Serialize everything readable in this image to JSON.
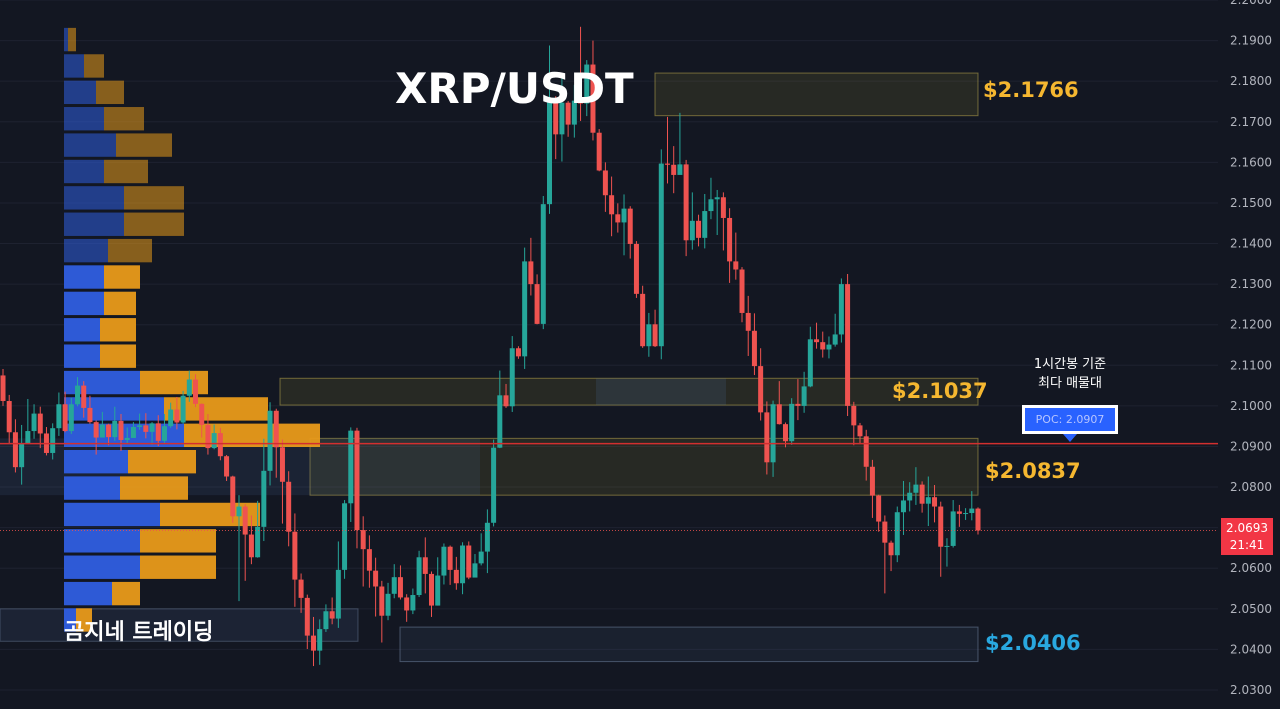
{
  "chart_data": {
    "type": "candlestick",
    "title": "XRP/USDT",
    "y_range": [
      2.03,
      2.2
    ],
    "y_ticks": [
      "2.0300",
      "2.0400",
      "2.0500",
      "2.0600",
      "2.0700",
      "2.0800",
      "2.0900",
      "2.1000",
      "2.1100",
      "2.1200",
      "2.1300",
      "2.1400",
      "2.1500",
      "2.1600",
      "2.1700",
      "2.1800",
      "2.1900",
      "2.2000"
    ],
    "levels": [
      {
        "label": "$2.1766",
        "value": 2.1766,
        "color": "#f5b730"
      },
      {
        "label": "$2.1037",
        "value": 2.1037,
        "color": "#f5b730"
      },
      {
        "label": "$2.0837",
        "value": 2.0837,
        "color": "#f5b730"
      },
      {
        "label": "$2.0406",
        "value": 2.0406,
        "color": "#29a8e0"
      }
    ],
    "zones": [
      {
        "top": 2.182,
        "bottom": 2.1715,
        "color": "yellow"
      },
      {
        "top": 2.1068,
        "bottom": 2.1002,
        "color": "yellow"
      },
      {
        "top": 2.092,
        "bottom": 2.078,
        "color": "yellow"
      },
      {
        "top": 2.0455,
        "bottom": 2.037,
        "color": "blue"
      }
    ],
    "poc": {
      "label": "POC: 2.0907",
      "value": 2.0907
    },
    "annotation": "1시간봉 기준\n최다 매물대",
    "last_price": {
      "price": "2.0693",
      "time": "21:41",
      "value": 2.0693
    },
    "volume_profile": {
      "bin_size": 0.0065,
      "top_price": 2.1935,
      "bins": [
        [
          0.01,
          0.02
        ],
        [
          0.05,
          0.05
        ],
        [
          0.08,
          0.07
        ],
        [
          0.1,
          0.1
        ],
        [
          0.13,
          0.14
        ],
        [
          0.1,
          0.11
        ],
        [
          0.15,
          0.15
        ],
        [
          0.15,
          0.15
        ],
        [
          0.11,
          0.11
        ],
        [
          0.1,
          0.09
        ],
        [
          0.1,
          0.08
        ],
        [
          0.09,
          0.09
        ],
        [
          0.09,
          0.09
        ],
        [
          0.19,
          0.17
        ],
        [
          0.25,
          0.26
        ],
        [
          0.3,
          0.34
        ],
        [
          0.16,
          0.17
        ],
        [
          0.14,
          0.17
        ],
        [
          0.24,
          0.25
        ],
        [
          0.19,
          0.19
        ],
        [
          0.19,
          0.19
        ],
        [
          0.12,
          0.07
        ],
        [
          0.03,
          0.04
        ]
      ],
      "up_color": "#2f5ee0",
      "down_color": "#e89a1a"
    },
    "candles": [
      [
        2.1075,
        2.1012,
        2.1091,
        2.1
      ],
      [
        2.1012,
        2.0935,
        2.1027,
        2.0907
      ],
      [
        2.0935,
        2.0849,
        2.0967,
        2.0836
      ],
      [
        2.0849,
        2.0907,
        2.0953,
        2.0806
      ],
      [
        2.0907,
        2.0938,
        2.1017,
        2.0915
      ],
      [
        2.0938,
        2.0981,
        2.1004,
        2.0919
      ],
      [
        2.0981,
        2.0932,
        2.0998,
        2.0896
      ],
      [
        2.0932,
        2.0884,
        2.0948,
        2.0878
      ],
      [
        2.0884,
        2.0945,
        2.0957,
        2.0868
      ],
      [
        2.0945,
        2.1004,
        2.1033,
        2.0926
      ],
      [
        2.1004,
        2.0938,
        2.1035,
        2.0935
      ],
      [
        2.0938,
        2.1004,
        2.102,
        2.0931
      ],
      [
        2.1004,
        2.105,
        2.1071,
        2.0999
      ],
      [
        2.105,
        2.0995,
        2.1061,
        2.0971
      ],
      [
        2.0995,
        2.096,
        2.1025,
        2.0956
      ],
      [
        2.096,
        2.0922,
        2.0964,
        2.088
      ],
      [
        2.0922,
        2.0954,
        2.0985,
        2.0922
      ],
      [
        2.0954,
        2.0923,
        2.0956,
        2.0903
      ],
      [
        2.0923,
        2.0963,
        2.0998,
        2.0914
      ],
      [
        2.0963,
        2.0916,
        2.098,
        2.0889
      ],
      [
        2.0916,
        2.0921,
        2.0947,
        2.0906
      ],
      [
        2.0921,
        2.0948,
        2.096,
        2.0923
      ],
      [
        2.0948,
        2.0952,
        2.0981,
        2.0941
      ],
      [
        2.0952,
        2.0936,
        2.0982,
        2.092
      ],
      [
        2.0936,
        2.0957,
        2.096,
        2.0904
      ],
      [
        2.0957,
        2.0914,
        2.0977,
        2.0901
      ],
      [
        2.0914,
        2.095,
        2.098,
        2.0906
      ],
      [
        2.095,
        2.0991,
        2.1008,
        2.0946
      ],
      [
        2.0991,
        2.0959,
        2.1022,
        2.0942
      ],
      [
        2.0959,
        2.1025,
        2.1037,
        2.0956
      ],
      [
        2.1025,
        2.1065,
        2.1087,
        2.101
      ],
      [
        2.1065,
        2.1005,
        2.1078,
        2.0997
      ],
      [
        2.1005,
        2.0953,
        2.1006,
        2.0922
      ],
      [
        2.0953,
        2.0896,
        2.098,
        2.088
      ],
      [
        2.0896,
        2.0933,
        2.0954,
        2.0893
      ],
      [
        2.0933,
        2.0876,
        2.0946,
        2.0866
      ],
      [
        2.0876,
        2.0826,
        2.0879,
        2.0815
      ],
      [
        2.0826,
        2.0728,
        2.0828,
        2.0712
      ],
      [
        2.0728,
        2.0752,
        2.078,
        2.0519
      ],
      [
        2.0752,
        2.0683,
        2.0758,
        2.0569
      ],
      [
        2.0683,
        2.0627,
        2.073,
        2.061
      ],
      [
        2.0627,
        2.0702,
        2.0766,
        2.0626
      ],
      [
        2.0702,
        2.084,
        2.0919,
        2.0667
      ],
      [
        2.084,
        2.0988,
        2.1009,
        2.0804
      ],
      [
        2.0988,
        2.0898,
        2.0993,
        2.0823
      ],
      [
        2.0898,
        2.0813,
        2.0917,
        2.071
      ],
      [
        2.0813,
        2.069,
        2.0839,
        2.0654
      ],
      [
        2.069,
        2.0572,
        2.0735,
        2.0505
      ],
      [
        2.0572,
        2.0527,
        2.0587,
        2.049
      ],
      [
        2.0527,
        2.0434,
        2.0535,
        2.0401
      ],
      [
        2.0434,
        2.0397,
        2.048,
        2.0359
      ],
      [
        2.0397,
        2.045,
        2.0474,
        2.0362
      ],
      [
        2.045,
        2.0494,
        2.0511,
        2.0443
      ],
      [
        2.0494,
        2.0476,
        2.0528,
        2.0462
      ],
      [
        2.0476,
        2.0596,
        2.0666,
        2.0453
      ],
      [
        2.0596,
        2.076,
        2.0768,
        2.0574
      ],
      [
        2.076,
        2.0939,
        2.0947,
        2.0714
      ],
      [
        2.0939,
        2.0694,
        2.0946,
        2.0649
      ],
      [
        2.0694,
        2.0647,
        2.0728,
        2.0555
      ],
      [
        2.0647,
        2.0594,
        2.0681,
        2.0552
      ],
      [
        2.0594,
        2.0555,
        2.0626,
        2.0481
      ],
      [
        2.0555,
        2.0483,
        2.0569,
        2.0417
      ],
      [
        2.0483,
        2.0537,
        2.0564,
        2.0472
      ],
      [
        2.0537,
        2.0578,
        2.061,
        2.0526
      ],
      [
        2.0578,
        2.0528,
        2.0607,
        2.0523
      ],
      [
        2.0528,
        2.0496,
        2.0536,
        2.0468
      ],
      [
        2.0496,
        2.0534,
        2.055,
        2.0487
      ],
      [
        2.0534,
        2.0627,
        2.0643,
        2.0529
      ],
      [
        2.0627,
        2.0586,
        2.0676,
        2.0538
      ],
      [
        2.0586,
        2.0508,
        2.0592,
        2.048
      ],
      [
        2.0508,
        2.0582,
        2.0627,
        2.0508
      ],
      [
        2.0582,
        2.0653,
        2.0661,
        2.056
      ],
      [
        2.0653,
        2.0596,
        2.0656,
        2.0559
      ],
      [
        2.0596,
        2.0563,
        2.0628,
        2.0547
      ],
      [
        2.0563,
        2.0656,
        2.0664,
        2.0536
      ],
      [
        2.0656,
        2.0577,
        2.0666,
        2.0573
      ],
      [
        2.0577,
        2.0612,
        2.0635,
        2.0598
      ],
      [
        2.0612,
        2.0641,
        2.0686,
        2.0607
      ],
      [
        2.0641,
        2.0712,
        2.0745,
        2.0588
      ],
      [
        2.0712,
        2.0897,
        2.0917,
        2.0703
      ],
      [
        2.0897,
        2.1026,
        2.1087,
        2.0896
      ],
      [
        2.1026,
        2.0999,
        2.1054,
        2.0995
      ],
      [
        2.0999,
        2.1142,
        2.1172,
        2.0985
      ],
      [
        2.1142,
        2.1122,
        2.1147,
        2.1116
      ],
      [
        2.1122,
        2.1356,
        2.139,
        2.1091
      ],
      [
        2.1356,
        2.13,
        2.1414,
        2.1272
      ],
      [
        2.13,
        2.1202,
        2.1324,
        2.1201
      ],
      [
        2.1202,
        2.1497,
        2.1517,
        2.1189
      ],
      [
        2.1497,
        2.1757,
        2.1888,
        2.1473
      ],
      [
        2.1757,
        2.1669,
        2.1763,
        2.1608
      ],
      [
        2.1669,
        2.1747,
        2.1808,
        2.1602
      ],
      [
        2.1747,
        2.1693,
        2.1751,
        2.1663
      ],
      [
        2.1693,
        2.1752,
        2.1791,
        2.1661
      ],
      [
        2.1752,
        2.1745,
        2.1934,
        2.1702
      ],
      [
        2.1745,
        2.1841,
        2.1852,
        2.1714
      ],
      [
        2.1841,
        2.1673,
        2.19,
        2.1654
      ],
      [
        2.1673,
        2.158,
        2.1682,
        2.1578
      ],
      [
        2.158,
        2.1519,
        2.16,
        2.1478
      ],
      [
        2.1519,
        2.1472,
        2.1565,
        2.1418
      ],
      [
        2.1472,
        2.1452,
        2.1499,
        2.1427
      ],
      [
        2.1452,
        2.1486,
        2.1521,
        2.1371
      ],
      [
        2.1486,
        2.1399,
        2.1492,
        2.1363
      ],
      [
        2.1399,
        2.1276,
        2.1406,
        2.1266
      ],
      [
        2.1276,
        2.1147,
        2.1296,
        2.1143
      ],
      [
        2.1147,
        2.1201,
        2.1229,
        2.1121
      ],
      [
        2.1201,
        2.1147,
        2.1237,
        2.1145
      ],
      [
        2.1147,
        2.1597,
        2.1632,
        2.1115
      ],
      [
        2.1597,
        2.1594,
        2.1712,
        2.1548
      ],
      [
        2.1594,
        2.1569,
        2.164,
        2.1524
      ],
      [
        2.1569,
        2.1595,
        2.1722,
        2.1592
      ],
      [
        2.1595,
        2.1408,
        2.1606,
        2.1369
      ],
      [
        2.1408,
        2.1456,
        2.1526,
        2.1385
      ],
      [
        2.1456,
        2.1414,
        2.1471,
        2.1393
      ],
      [
        2.1414,
        2.148,
        2.1522,
        2.1388
      ],
      [
        2.148,
        2.1509,
        2.1562,
        2.146
      ],
      [
        2.1509,
        2.1514,
        2.1532,
        2.1421
      ],
      [
        2.1514,
        2.1463,
        2.1526,
        2.1383
      ],
      [
        2.1463,
        2.1356,
        2.1487,
        2.1303
      ],
      [
        2.1356,
        2.1336,
        2.1427,
        2.1311
      ],
      [
        2.1336,
        2.1229,
        2.1342,
        2.1206
      ],
      [
        2.1229,
        2.1185,
        2.1271,
        2.1123
      ],
      [
        2.1185,
        2.1098,
        2.1228,
        2.1076
      ],
      [
        2.1098,
        2.0984,
        2.1142,
        2.0964
      ],
      [
        2.0984,
        2.0861,
        2.1011,
        2.0831
      ],
      [
        2.0861,
        2.1004,
        2.1013,
        2.0825
      ],
      [
        2.1004,
        2.0955,
        2.1061,
        2.0954
      ],
      [
        2.0955,
        2.0913,
        2.0959,
        2.0898
      ],
      [
        2.0913,
        2.1005,
        2.1019,
        2.0904
      ],
      [
        2.1005,
        2.1,
        2.1066,
        2.0965
      ],
      [
        2.1,
        2.1048,
        2.1084,
        2.0983
      ],
      [
        2.1048,
        2.1164,
        2.1195,
        2.1046
      ],
      [
        2.1164,
        2.1157,
        2.1205,
        2.1141
      ],
      [
        2.1157,
        2.1139,
        2.1183,
        2.1119
      ],
      [
        2.1139,
        2.1151,
        2.1171,
        2.1117
      ],
      [
        2.1151,
        2.1176,
        2.1227,
        2.1146
      ],
      [
        2.1176,
        2.13,
        2.1314,
        2.1156
      ],
      [
        2.13,
        2.1,
        2.1325,
        2.0975
      ],
      [
        2.1,
        2.0952,
        2.101,
        2.0903
      ],
      [
        2.0952,
        2.0925,
        2.0958,
        2.0906
      ],
      [
        2.0925,
        2.085,
        2.0941,
        2.0816
      ],
      [
        2.085,
        2.0779,
        2.0867,
        2.0724
      ],
      [
        2.0779,
        2.0715,
        2.0781,
        2.069
      ],
      [
        2.0715,
        2.0663,
        2.073,
        2.0538
      ],
      [
        2.0663,
        2.0632,
        2.0668,
        2.0593
      ],
      [
        2.0632,
        2.0738,
        2.0752,
        2.0615
      ],
      [
        2.0738,
        2.0767,
        2.0815,
        2.0682
      ],
      [
        2.0767,
        2.0786,
        2.0812,
        2.074
      ],
      [
        2.0786,
        2.0806,
        2.0849,
        2.0756
      ],
      [
        2.0806,
        2.0759,
        2.0814,
        2.0737
      ],
      [
        2.0759,
        2.0775,
        2.0826,
        2.0704
      ],
      [
        2.0775,
        2.0752,
        2.0805,
        2.0713
      ],
      [
        2.0752,
        2.0653,
        2.0764,
        2.0579
      ],
      [
        2.0653,
        2.0655,
        2.0674,
        2.0604
      ],
      [
        2.0655,
        2.074,
        2.0768,
        2.0651
      ],
      [
        2.074,
        2.0734,
        2.0756,
        2.0702
      ],
      [
        2.0734,
        2.0736,
        2.0748,
        2.0719
      ],
      [
        2.0736,
        2.0747,
        2.079,
        2.0718
      ],
      [
        2.0747,
        2.0693,
        2.075,
        2.0683
      ]
    ]
  },
  "labels": {
    "title": "XRP/USDT",
    "watermark": "곰지네 트레이딩",
    "note_line1": "1시간봉 기준",
    "note_line2": "최다 매물대",
    "poc": "POC: 2.0907",
    "lvl1": "$2.1766",
    "lvl2": "$2.1037",
    "lvl3": "$2.0837",
    "lvl4": "$2.0406",
    "last_price": "2.0693",
    "last_time": "21:41"
  }
}
